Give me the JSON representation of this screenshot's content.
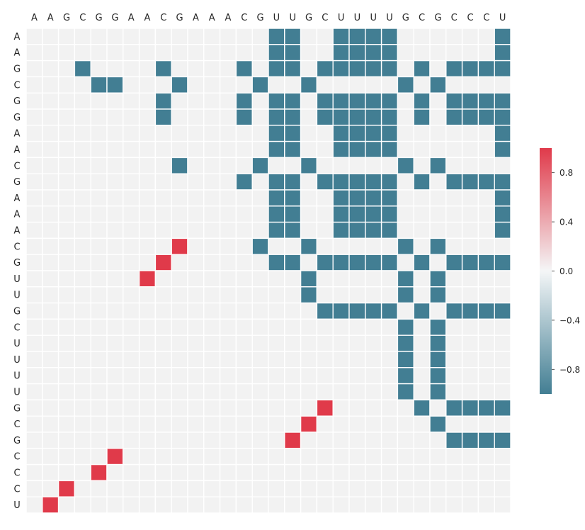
{
  "chart_data": {
    "type": "heatmap",
    "title": "",
    "xlabel": "",
    "ylabel": "",
    "x_labels": [
      "A",
      "A",
      "G",
      "C",
      "G",
      "G",
      "A",
      "A",
      "C",
      "G",
      "A",
      "A",
      "A",
      "C",
      "G",
      "U",
      "U",
      "G",
      "C",
      "U",
      "U",
      "U",
      "U",
      "G",
      "C",
      "G",
      "C",
      "C",
      "C",
      "U"
    ],
    "y_labels": [
      "A",
      "A",
      "G",
      "C",
      "G",
      "G",
      "A",
      "A",
      "C",
      "G",
      "A",
      "A",
      "A",
      "C",
      "G",
      "U",
      "U",
      "G",
      "C",
      "U",
      "U",
      "U",
      "U",
      "G",
      "C",
      "G",
      "C",
      "C",
      "C",
      "U"
    ],
    "positive_cells": [
      [
        13,
        9
      ],
      [
        14,
        8
      ],
      [
        15,
        7
      ],
      [
        23,
        18
      ],
      [
        24,
        17
      ],
      [
        25,
        16
      ],
      [
        26,
        5
      ],
      [
        27,
        4
      ],
      [
        28,
        2
      ],
      [
        29,
        1
      ]
    ],
    "negative_rows": [
      [
        15,
        16,
        19,
        20,
        21,
        22,
        29
      ],
      [
        15,
        16,
        19,
        20,
        21,
        22,
        29
      ],
      [
        3,
        8,
        13,
        15,
        16,
        18,
        19,
        20,
        21,
        22,
        24,
        26,
        27,
        28,
        29
      ],
      [
        4,
        5,
        9,
        14,
        17,
        23,
        25
      ],
      [
        8,
        13,
        15,
        16,
        18,
        19,
        20,
        21,
        22,
        24,
        26,
        27,
        28,
        29
      ],
      [
        8,
        13,
        15,
        16,
        18,
        19,
        20,
        21,
        22,
        24,
        26,
        27,
        28,
        29
      ],
      [
        15,
        16,
        19,
        20,
        21,
        22,
        29
      ],
      [
        15,
        16,
        19,
        20,
        21,
        22,
        29
      ],
      [
        9,
        14,
        17,
        23,
        25
      ],
      [
        13,
        15,
        16,
        18,
        19,
        20,
        21,
        22,
        24,
        26,
        27,
        28,
        29
      ],
      [
        15,
        16,
        19,
        20,
        21,
        22,
        29
      ],
      [
        15,
        16,
        19,
        20,
        21,
        22,
        29
      ],
      [
        15,
        16,
        19,
        20,
        21,
        22,
        29
      ],
      [
        14,
        17,
        23,
        25
      ],
      [
        15,
        16,
        18,
        19,
        20,
        21,
        22,
        24,
        26,
        27,
        28,
        29
      ],
      [
        17,
        23,
        25
      ],
      [
        17,
        23,
        25
      ],
      [
        18,
        19,
        20,
        21,
        22,
        24,
        26,
        27,
        28,
        29
      ],
      [
        23,
        25
      ],
      [
        23,
        25
      ],
      [
        23,
        25
      ],
      [
        23,
        25
      ],
      [
        23,
        25
      ],
      [
        24,
        26,
        27,
        28,
        29
      ],
      [
        25
      ],
      [
        26,
        27,
        28,
        29
      ],
      [],
      [],
      [],
      []
    ],
    "positive_value": 1,
    "negative_value": -1,
    "zero_value": 0,
    "colorbar": {
      "ticks": [
        "0.8",
        "0.4",
        "0.0",
        "−0.4",
        "−0.8"
      ],
      "tick_values": [
        0.8,
        0.4,
        0.0,
        -0.4,
        -0.8
      ],
      "range": [
        -1,
        1
      ]
    },
    "colors": {
      "positive": "#e03a4a",
      "negative": "#427e93",
      "zero": "#f2f2f2",
      "mid": "#f4f6f7",
      "grid": "#ffffff"
    },
    "legend_position": "right",
    "grid": true
  }
}
